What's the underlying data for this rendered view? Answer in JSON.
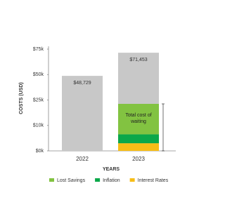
{
  "chart_data": {
    "type": "bar",
    "categories": [
      "2022",
      "2023"
    ],
    "totals": [
      48729,
      71453
    ],
    "value_labels": [
      "$48,729",
      "$71,453"
    ],
    "total_color": "#c8c8c8",
    "series": [
      {
        "name": "Interest Rates",
        "color": "#f7bd17",
        "values": [
          null,
          3000
        ]
      },
      {
        "name": "Inflation",
        "color": "#0ba84a",
        "values": [
          null,
          3500
        ]
      },
      {
        "name": "Lost Savings",
        "color": "#82c341",
        "values": [
          null,
          16224
        ]
      }
    ],
    "legend_order": [
      2,
      1,
      0
    ],
    "annotation": "Total cost of waiting",
    "x_label": "YEARS",
    "y_label": "COSTS (USD)",
    "ylim": [
      0,
      75000
    ],
    "yticks": [
      {
        "value": 0,
        "label": "$0k"
      },
      {
        "value": 10000,
        "label": "$10k"
      },
      {
        "value": 25000,
        "label": "$25k"
      },
      {
        "value": 50000,
        "label": "$50k"
      },
      {
        "value": 75000,
        "label": "$75k"
      }
    ]
  }
}
